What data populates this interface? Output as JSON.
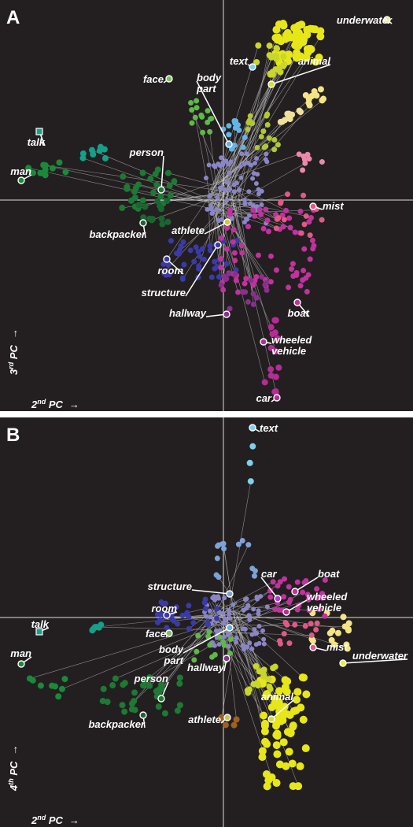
{
  "colors": {
    "panel_bg": "#231f20",
    "separator": "#ffffff",
    "axis_line": "#dddddd",
    "text": "#ffffff"
  },
  "panels": [
    {
      "letter": "A",
      "x_axis": {
        "label_base": "2",
        "label_sup": "nd",
        "label_rest": " PC",
        "arrow": "→"
      },
      "y_axis": {
        "label_base": "3",
        "label_sup": "rd",
        "label_rest": " PC",
        "arrow": "→"
      },
      "labels": [
        "underwater",
        "text",
        "animal",
        "face",
        "body part",
        "talk",
        "person",
        "man",
        "mist",
        "backpacker",
        "athlete",
        "room",
        "structure",
        "hallway",
        "boat",
        "wheeled vehicle",
        "car"
      ]
    },
    {
      "letter": "B",
      "x_axis": {
        "label_base": "2",
        "label_sup": "nd",
        "label_rest": " PC",
        "arrow": "→"
      },
      "y_axis": {
        "label_base": "4",
        "label_sup": "th",
        "label_rest": " PC",
        "arrow": "→"
      },
      "labels": [
        "text",
        "car",
        "boat",
        "structure",
        "wheeled vehicle",
        "room",
        "talk",
        "face",
        "mist",
        "body part",
        "underwater",
        "man",
        "hallway",
        "animal",
        "person",
        "athlete",
        "backpacker"
      ]
    }
  ]
}
